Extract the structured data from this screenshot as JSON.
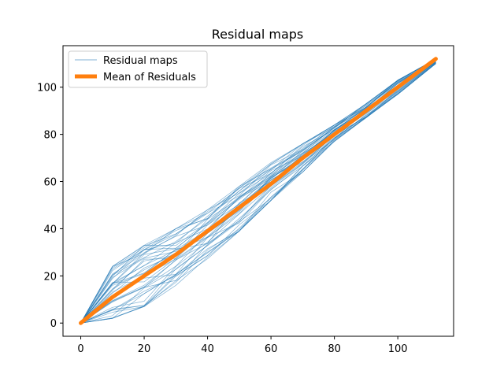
{
  "chart_data": {
    "type": "line",
    "title": "Residual maps",
    "xlabel": "",
    "ylabel": "",
    "xlim": [
      -5.6,
      117.6
    ],
    "ylim": [
      -5.6,
      117.6
    ],
    "xticks": [
      0,
      20,
      40,
      60,
      80,
      100
    ],
    "yticks": [
      0,
      20,
      40,
      60,
      80,
      100
    ],
    "legend_position": "top-left",
    "series": [
      {
        "name": "Residual maps",
        "kind": "ensemble",
        "count": 40,
        "color": "#1f77b4",
        "x": [
          0,
          10,
          20,
          30,
          40,
          50,
          60,
          70,
          80,
          90,
          100,
          112
        ],
        "y_range": [
          [
            0,
            0
          ],
          [
            2,
            24
          ],
          [
            7,
            33
          ],
          [
            16,
            40
          ],
          [
            27,
            48
          ],
          [
            39,
            58
          ],
          [
            52,
            68
          ],
          [
            64,
            76
          ],
          [
            77,
            84
          ],
          [
            87,
            93
          ],
          [
            97,
            103
          ],
          [
            110,
            112
          ]
        ]
      },
      {
        "name": "Mean of Residuals",
        "color": "#ff7f0e",
        "x": [
          0,
          10,
          20,
          30,
          40,
          50,
          60,
          70,
          80,
          90,
          100,
          112
        ],
        "y": [
          0,
          11,
          20,
          29,
          39,
          49,
          59,
          70,
          80,
          90,
          100,
          112
        ]
      }
    ]
  }
}
